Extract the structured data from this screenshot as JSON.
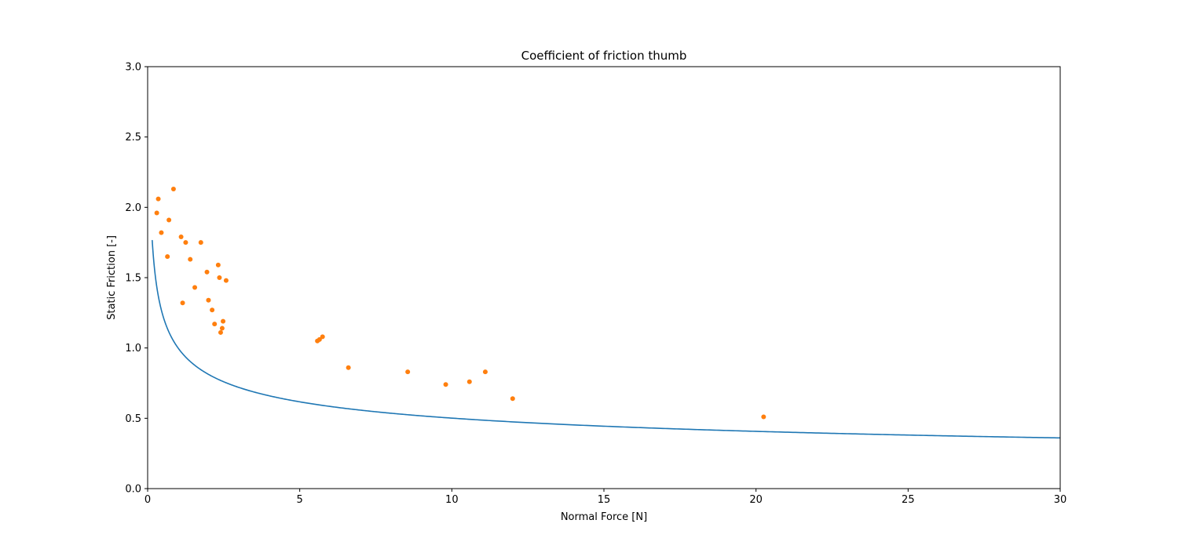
{
  "chart_data": {
    "type": "scatter",
    "title": "Coefficient of friction thumb",
    "xlabel": "Normal Force [N]",
    "ylabel": "Static Friction [-]",
    "xlim": [
      0,
      30
    ],
    "ylim": [
      0,
      3.0
    ],
    "xticks": [
      "0",
      "5",
      "10",
      "15",
      "20",
      "25",
      "30"
    ],
    "yticks": [
      "0.0",
      "0.5",
      "1.0",
      "1.5",
      "2.0",
      "2.5",
      "3.0"
    ],
    "grid": false,
    "legend": "none",
    "series": [
      {
        "kind": "line",
        "color": "#1f77b4",
        "fit": {
          "form": "power",
          "a": 1.0,
          "b": -0.3
        },
        "x_range": [
          0.15,
          30
        ]
      },
      {
        "kind": "scatter",
        "color": "#ff7f0e",
        "points": [
          [
            0.3,
            1.96
          ],
          [
            0.35,
            2.06
          ],
          [
            0.45,
            1.82
          ],
          [
            0.65,
            1.65
          ],
          [
            0.7,
            1.91
          ],
          [
            0.85,
            2.13
          ],
          [
            1.1,
            1.79
          ],
          [
            1.15,
            1.32
          ],
          [
            1.25,
            1.75
          ],
          [
            1.4,
            1.63
          ],
          [
            1.55,
            1.43
          ],
          [
            1.75,
            1.75
          ],
          [
            1.95,
            1.54
          ],
          [
            2.0,
            1.34
          ],
          [
            2.12,
            1.27
          ],
          [
            2.2,
            1.17
          ],
          [
            2.32,
            1.59
          ],
          [
            2.36,
            1.5
          ],
          [
            2.4,
            1.11
          ],
          [
            2.45,
            1.14
          ],
          [
            2.48,
            1.19
          ],
          [
            2.58,
            1.48
          ],
          [
            5.58,
            1.05
          ],
          [
            5.65,
            1.06
          ],
          [
            5.75,
            1.08
          ],
          [
            6.6,
            0.86
          ],
          [
            8.55,
            0.83
          ],
          [
            9.8,
            0.74
          ],
          [
            10.58,
            0.76
          ],
          [
            11.1,
            0.83
          ],
          [
            12.0,
            0.64
          ],
          [
            20.25,
            0.51
          ]
        ]
      }
    ]
  }
}
